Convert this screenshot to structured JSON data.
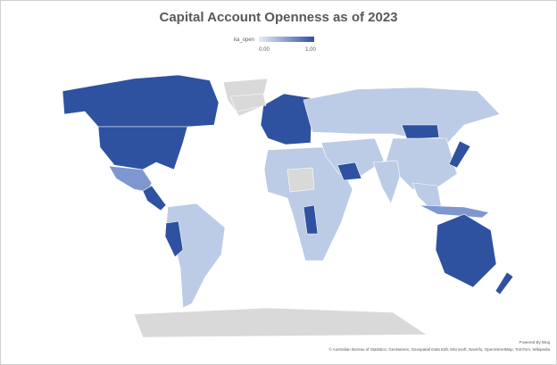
{
  "title": "Capital Account Openness as of 2023",
  "legend": {
    "label": "ka_open",
    "min": "0.00",
    "max": "1.00"
  },
  "attribution": {
    "powered": "Powered By Bing",
    "credits": "© Australian Bureau of Statistics, GeoNames, Geospatial Data Edit, Microsoft, Navinfo, OpenStreetMap, TomTom, Wikipedia"
  }
}
